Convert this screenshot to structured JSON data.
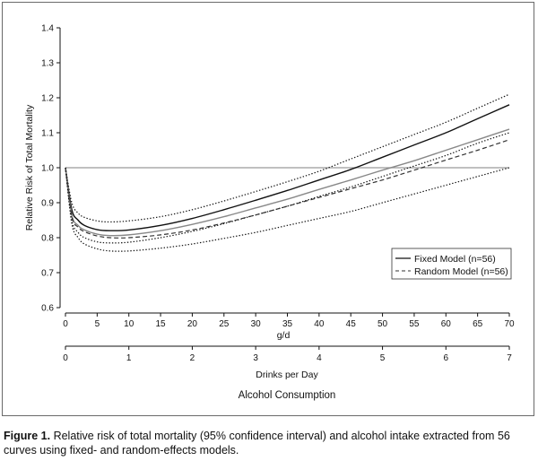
{
  "chart_data": {
    "type": "line",
    "ylabel": "Relative Risk of Total Mortality",
    "xlabel_primary": "g/d",
    "xlabel_secondary": "Drinks per Day",
    "xlabel_group": "Alcohol Consumption",
    "ylim": [
      0.6,
      1.4
    ],
    "xlim": [
      0,
      70
    ],
    "y_ticks": [
      "0.6",
      "0.7",
      "0.8",
      "0.9",
      "1.0",
      "1.1",
      "1.2",
      "1.3",
      "1.4"
    ],
    "x_ticks_gd": [
      "0",
      "5",
      "10",
      "15",
      "20",
      "25",
      "30",
      "35",
      "40",
      "45",
      "50",
      "55",
      "60",
      "65",
      "70"
    ],
    "x_ticks_drinks": [
      "0",
      "1",
      "2",
      "3",
      "4",
      "5",
      "6",
      "7"
    ],
    "reference_line": 1.0,
    "legend": [
      {
        "label": "Fixed Model (n=56)",
        "style": "solid"
      },
      {
        "label": "Random Model (n=56)",
        "style": "dashed"
      }
    ],
    "series": [
      {
        "name": "Fixed Model",
        "style": "solid",
        "color": "#111111",
        "x": [
          0,
          1,
          2,
          3,
          5,
          7,
          10,
          15,
          20,
          25,
          30,
          35,
          40,
          45,
          50,
          55,
          60,
          65,
          70
        ],
        "y": [
          1.0,
          0.88,
          0.85,
          0.835,
          0.823,
          0.82,
          0.822,
          0.835,
          0.855,
          0.88,
          0.907,
          0.935,
          0.965,
          0.995,
          1.03,
          1.065,
          1.1,
          1.14,
          1.18
        ]
      },
      {
        "name": "Fixed Model 95% CI upper",
        "style": "dotted",
        "color": "#111111",
        "x": [
          0,
          1,
          2,
          3,
          5,
          7,
          10,
          15,
          20,
          25,
          30,
          35,
          40,
          45,
          50,
          55,
          60,
          65,
          70
        ],
        "y": [
          1.0,
          0.9,
          0.87,
          0.858,
          0.848,
          0.845,
          0.848,
          0.86,
          0.88,
          0.905,
          0.932,
          0.96,
          0.99,
          1.025,
          1.06,
          1.095,
          1.13,
          1.17,
          1.21
        ]
      },
      {
        "name": "Fixed Model 95% CI lower",
        "style": "dotted",
        "color": "#111111",
        "x": [
          0,
          1,
          2,
          3,
          5,
          7,
          10,
          15,
          20,
          25,
          30,
          35,
          40,
          45,
          50,
          55,
          60,
          65,
          70
        ],
        "y": [
          1.0,
          0.85,
          0.815,
          0.8,
          0.788,
          0.785,
          0.787,
          0.8,
          0.818,
          0.84,
          0.865,
          0.89,
          0.918,
          0.945,
          0.975,
          1.005,
          1.035,
          1.07,
          1.1
        ]
      },
      {
        "name": "Random Model",
        "style": "solid",
        "color": "#888888",
        "x": [
          0,
          1,
          2,
          3,
          5,
          7,
          10,
          15,
          20,
          25,
          30,
          35,
          40,
          45,
          50,
          55,
          60,
          65,
          70
        ],
        "y": [
          1.0,
          0.865,
          0.835,
          0.822,
          0.81,
          0.806,
          0.808,
          0.82,
          0.838,
          0.86,
          0.885,
          0.91,
          0.938,
          0.965,
          0.993,
          1.02,
          1.05,
          1.08,
          1.11
        ]
      },
      {
        "name": "Random Model",
        "style": "dashed",
        "color": "#333333",
        "x": [
          0,
          1,
          2,
          3,
          5,
          7,
          10,
          15,
          20,
          25,
          30,
          35,
          40,
          45,
          50,
          55,
          60,
          65,
          70
        ],
        "y": [
          1.0,
          0.86,
          0.83,
          0.817,
          0.805,
          0.8,
          0.8,
          0.808,
          0.822,
          0.842,
          0.865,
          0.89,
          0.915,
          0.94,
          0.965,
          0.993,
          1.022,
          1.05,
          1.08
        ]
      },
      {
        "name": "Random Model 95% CI lower",
        "style": "dotted",
        "color": "#111111",
        "x": [
          0,
          1,
          2,
          3,
          5,
          7,
          10,
          15,
          20,
          25,
          30,
          35,
          40,
          45,
          50,
          55,
          60,
          65,
          70
        ],
        "y": [
          1.0,
          0.84,
          0.8,
          0.782,
          0.768,
          0.762,
          0.762,
          0.77,
          0.782,
          0.798,
          0.815,
          0.835,
          0.855,
          0.875,
          0.9,
          0.925,
          0.95,
          0.975,
          1.0
        ]
      }
    ]
  },
  "caption": {
    "label": "Figure 1.",
    "text": "Relative risk of total mortality (95% confidence interval) and alcohol intake extracted from 56 curves using fixed- and random-effects models."
  }
}
